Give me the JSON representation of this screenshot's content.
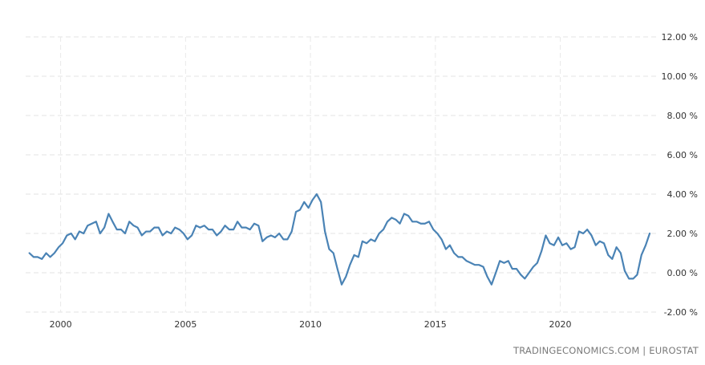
{
  "chart_data": {
    "type": "line",
    "title": "",
    "xlabel": "",
    "ylabel": "",
    "ylim": [
      -2,
      12
    ],
    "xlim": [
      1998.6,
      2023.9
    ],
    "y_ticks": [
      12,
      10,
      8,
      6,
      4,
      2,
      0,
      -2
    ],
    "y_tick_labels": [
      "12.00 %",
      "10.00 %",
      "8.00 %",
      "6.00 %",
      "4.00 %",
      "2.00 %",
      "0.00 %",
      "-2.00 %"
    ],
    "x_ticks": [
      2000,
      2005,
      2010,
      2015,
      2020
    ],
    "x_tick_labels": [
      "2000",
      "2005",
      "2010",
      "2015",
      "2020"
    ],
    "grid": true,
    "legend": "none",
    "series": [
      {
        "color": "#4a83b5",
        "points": [
          [
            1998.75,
            1.0
          ],
          [
            1998.92,
            0.8
          ],
          [
            1999.08,
            0.8
          ],
          [
            1999.25,
            0.7
          ],
          [
            1999.42,
            1.0
          ],
          [
            1999.58,
            0.8
          ],
          [
            1999.75,
            1.0
          ],
          [
            1999.92,
            1.3
          ],
          [
            2000.08,
            1.5
          ],
          [
            2000.25,
            1.9
          ],
          [
            2000.42,
            2.0
          ],
          [
            2000.58,
            1.7
          ],
          [
            2000.75,
            2.1
          ],
          [
            2000.92,
            2.0
          ],
          [
            2001.08,
            2.4
          ],
          [
            2001.25,
            2.5
          ],
          [
            2001.42,
            2.6
          ],
          [
            2001.58,
            2.0
          ],
          [
            2001.75,
            2.3
          ],
          [
            2001.92,
            3.0
          ],
          [
            2002.08,
            2.6
          ],
          [
            2002.25,
            2.2
          ],
          [
            2002.42,
            2.2
          ],
          [
            2002.58,
            2.0
          ],
          [
            2002.75,
            2.6
          ],
          [
            2002.92,
            2.4
          ],
          [
            2003.08,
            2.3
          ],
          [
            2003.25,
            1.9
          ],
          [
            2003.42,
            2.1
          ],
          [
            2003.58,
            2.1
          ],
          [
            2003.75,
            2.3
          ],
          [
            2003.92,
            2.3
          ],
          [
            2004.08,
            1.9
          ],
          [
            2004.25,
            2.1
          ],
          [
            2004.42,
            2.0
          ],
          [
            2004.58,
            2.3
          ],
          [
            2004.75,
            2.2
          ],
          [
            2004.92,
            2.0
          ],
          [
            2005.08,
            1.7
          ],
          [
            2005.25,
            1.9
          ],
          [
            2005.42,
            2.4
          ],
          [
            2005.58,
            2.3
          ],
          [
            2005.75,
            2.4
          ],
          [
            2005.92,
            2.2
          ],
          [
            2006.08,
            2.2
          ],
          [
            2006.25,
            1.9
          ],
          [
            2006.42,
            2.1
          ],
          [
            2006.58,
            2.4
          ],
          [
            2006.75,
            2.2
          ],
          [
            2006.92,
            2.2
          ],
          [
            2007.08,
            2.6
          ],
          [
            2007.25,
            2.3
          ],
          [
            2007.42,
            2.3
          ],
          [
            2007.58,
            2.2
          ],
          [
            2007.75,
            2.5
          ],
          [
            2007.92,
            2.4
          ],
          [
            2008.08,
            1.6
          ],
          [
            2008.25,
            1.8
          ],
          [
            2008.42,
            1.9
          ],
          [
            2008.58,
            1.8
          ],
          [
            2008.75,
            2.0
          ],
          [
            2008.92,
            1.7
          ],
          [
            2009.08,
            1.7
          ],
          [
            2009.25,
            2.1
          ],
          [
            2009.42,
            3.1
          ],
          [
            2009.58,
            3.2
          ],
          [
            2009.75,
            3.6
          ],
          [
            2009.92,
            3.3
          ],
          [
            2010.08,
            3.7
          ],
          [
            2010.25,
            4.0
          ],
          [
            2010.42,
            3.6
          ],
          [
            2010.58,
            2.1
          ],
          [
            2010.75,
            1.2
          ],
          [
            2010.92,
            1.0
          ],
          [
            2011.08,
            0.2
          ],
          [
            2011.25,
            -0.6
          ],
          [
            2011.42,
            -0.2
          ],
          [
            2011.58,
            0.4
          ],
          [
            2011.75,
            0.9
          ],
          [
            2011.92,
            0.8
          ],
          [
            2012.08,
            1.6
          ],
          [
            2012.25,
            1.5
          ],
          [
            2012.42,
            1.7
          ],
          [
            2012.58,
            1.6
          ],
          [
            2012.75,
            2.0
          ],
          [
            2012.92,
            2.2
          ],
          [
            2013.08,
            2.6
          ],
          [
            2013.25,
            2.8
          ],
          [
            2013.42,
            2.7
          ],
          [
            2013.58,
            2.5
          ],
          [
            2013.75,
            3.0
          ],
          [
            2013.92,
            2.9
          ],
          [
            2014.08,
            2.6
          ],
          [
            2014.25,
            2.6
          ],
          [
            2014.42,
            2.5
          ],
          [
            2014.58,
            2.5
          ],
          [
            2014.75,
            2.6
          ],
          [
            2014.92,
            2.2
          ],
          [
            2015.08,
            2.0
          ],
          [
            2015.25,
            1.7
          ],
          [
            2015.42,
            1.2
          ],
          [
            2015.58,
            1.4
          ],
          [
            2015.75,
            1.0
          ],
          [
            2015.92,
            0.8
          ],
          [
            2016.08,
            0.8
          ],
          [
            2016.25,
            0.6
          ],
          [
            2016.42,
            0.5
          ],
          [
            2016.58,
            0.4
          ],
          [
            2016.75,
            0.4
          ],
          [
            2016.92,
            0.3
          ],
          [
            2017.08,
            -0.2
          ],
          [
            2017.25,
            -0.6
          ],
          [
            2017.42,
            0.0
          ],
          [
            2017.58,
            0.6
          ],
          [
            2017.75,
            0.5
          ],
          [
            2017.92,
            0.6
          ],
          [
            2018.08,
            0.2
          ],
          [
            2018.25,
            0.2
          ],
          [
            2018.42,
            -0.1
          ],
          [
            2018.58,
            -0.3
          ],
          [
            2018.75,
            0.0
          ],
          [
            2018.92,
            0.3
          ],
          [
            2019.08,
            0.5
          ],
          [
            2019.25,
            1.1
          ],
          [
            2019.42,
            1.9
          ],
          [
            2019.58,
            1.5
          ],
          [
            2019.75,
            1.4
          ],
          [
            2019.92,
            1.8
          ],
          [
            2020.08,
            1.4
          ],
          [
            2020.25,
            1.5
          ],
          [
            2020.42,
            1.2
          ],
          [
            2020.58,
            1.3
          ],
          [
            2020.75,
            2.1
          ],
          [
            2020.92,
            2.0
          ],
          [
            2021.08,
            2.2
          ],
          [
            2021.25,
            1.9
          ],
          [
            2021.42,
            1.4
          ],
          [
            2021.58,
            1.6
          ],
          [
            2021.75,
            1.5
          ],
          [
            2021.92,
            0.9
          ],
          [
            2022.08,
            0.7
          ],
          [
            2022.25,
            1.3
          ],
          [
            2022.42,
            1.0
          ],
          [
            2022.58,
            0.1
          ],
          [
            2022.75,
            -0.3
          ],
          [
            2022.92,
            -0.3
          ],
          [
            2023.08,
            -0.1
          ],
          [
            2023.25,
            0.9
          ],
          [
            2023.42,
            1.4
          ],
          [
            2023.58,
            2.0
          ]
        ]
      }
    ]
  },
  "footer": {
    "source": "TRADINGECONOMICS.COM | EUROSTAT"
  }
}
